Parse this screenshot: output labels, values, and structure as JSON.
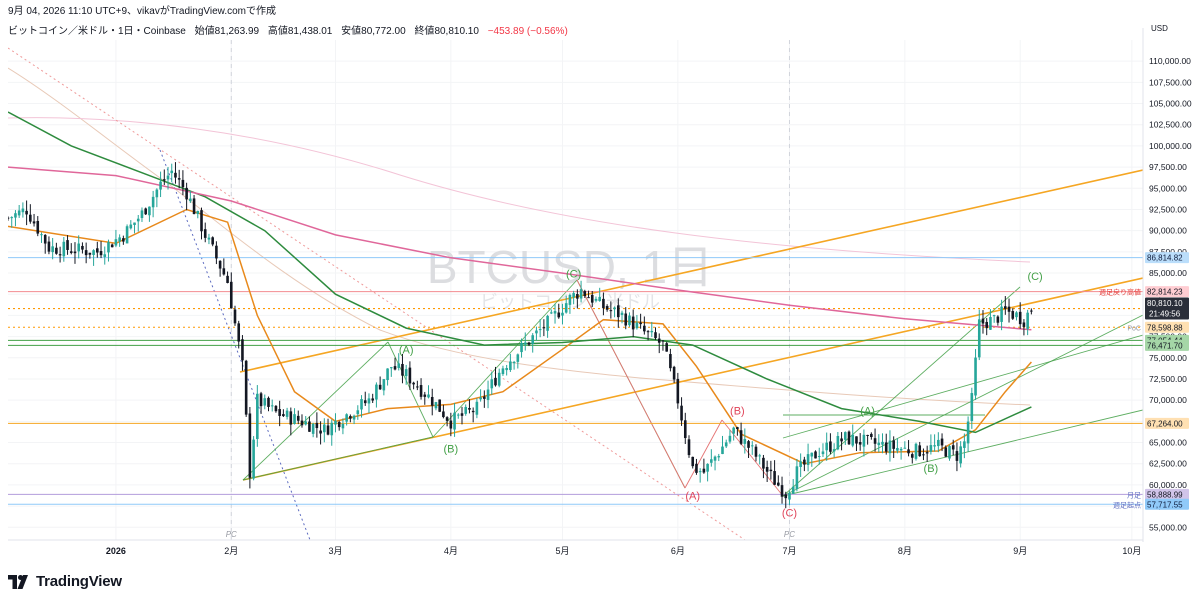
{
  "header": {
    "created_line": "9月 04, 2026 11:10 UTC+9、vikavがTradingView.comで作成"
  },
  "symbol": {
    "name": "ビットコイン／米ドル・1日・Coinbase",
    "open_label": "始値",
    "open": "81,263.99",
    "high_label": "高値",
    "high": "81,438.01",
    "low_label": "安値",
    "low": "80,772.00",
    "close_label": "終値",
    "close": "80,810.10",
    "change": "−453.89 (−0.56%)"
  },
  "watermark": {
    "main": "BTCUSD, 1日",
    "sub": "ビットコイン／米ドル"
  },
  "currency": "USD",
  "footer": {
    "logo_text": "TradingView"
  },
  "colors": {
    "up": "#26a69a",
    "down": "#131722",
    "orange": "#f5a623",
    "orange_dark": "#e8891b",
    "green_ma": "#2e8b3e",
    "pink": "#e0679a",
    "wave_green": "#43a047",
    "wave_red": "#e0455a",
    "price_line": "#ff9800",
    "blue_line": "#90caf9",
    "red_line": "#f28b91",
    "purple_line": "#b39ddb"
  },
  "chart_data": {
    "type": "candlestick",
    "symbol": "BTCUSD",
    "timeframe": "1日",
    "ylim": [
      53500,
      112500
    ],
    "y_ticks": [
      "55,000.00",
      "57,500.00",
      "60,000.00",
      "62,500.00",
      "65,000.00",
      "67,500.00",
      "70,000.00",
      "72,500.00",
      "75,000.00",
      "77,500.00",
      "80,000.00",
      "82,500.00",
      "85,000.00",
      "87,500.00",
      "90,000.00",
      "92,500.00",
      "95,000.00",
      "97,500.00",
      "100,000.00",
      "102,500.00",
      "105,000.00",
      "107,500.00",
      "110,000.00"
    ],
    "x_ticks": [
      "2026",
      "2月",
      "3月",
      "4月",
      "5月",
      "6月",
      "7月",
      "8月",
      "9月",
      "10月"
    ],
    "x_tick_dates": [
      "2026-01-01",
      "2026-02-01",
      "2026-03-01",
      "2026-04-01",
      "2026-05-01",
      "2026-06-01",
      "2026-07-01",
      "2026-08-01",
      "2026-09-01",
      "2026-10-01"
    ],
    "x_range": [
      "2025-12-03",
      "2026-10-04"
    ],
    "price_anchors": [
      [
        "2025-12-03",
        91500
      ],
      [
        "2025-12-08",
        92500
      ],
      [
        "2025-12-14",
        88000
      ],
      [
        "2025-12-20",
        87800
      ],
      [
        "2025-12-27",
        87500
      ],
      [
        "2026-01-03",
        89500
      ],
      [
        "2026-01-08",
        92000
      ],
      [
        "2026-01-13",
        95500
      ],
      [
        "2026-01-16",
        97000
      ],
      [
        "2026-01-20",
        94500
      ],
      [
        "2026-01-25",
        89500
      ],
      [
        "2026-01-31",
        84000
      ],
      [
        "2026-02-04",
        74000
      ],
      [
        "2026-02-06",
        61500
      ],
      [
        "2026-02-08",
        70000
      ],
      [
        "2026-02-13",
        68500
      ],
      [
        "2026-02-20",
        67500
      ],
      [
        "2026-02-26",
        66500
      ],
      [
        "2026-03-03",
        68000
      ],
      [
        "2026-03-10",
        70000
      ],
      [
        "2026-03-16",
        74000
      ],
      [
        "2026-03-20",
        73000
      ],
      [
        "2026-03-27",
        70000
      ],
      [
        "2026-04-01",
        67500
      ],
      [
        "2026-04-08",
        69000
      ],
      [
        "2026-04-15",
        74000
      ],
      [
        "2026-04-22",
        77000
      ],
      [
        "2026-04-28",
        79500
      ],
      [
        "2026-05-03",
        82000
      ],
      [
        "2026-05-06",
        83000
      ],
      [
        "2026-05-12",
        81000
      ],
      [
        "2026-05-17",
        80000
      ],
      [
        "2026-05-23",
        78000
      ],
      [
        "2026-05-28",
        76500
      ],
      [
        "2026-06-01",
        70000
      ],
      [
        "2026-06-05",
        62000
      ],
      [
        "2026-06-08",
        61500
      ],
      [
        "2026-06-13",
        64500
      ],
      [
        "2026-06-16",
        66500
      ],
      [
        "2026-06-21",
        64000
      ],
      [
        "2026-06-26",
        61000
      ],
      [
        "2026-06-30",
        59000
      ],
      [
        "2026-07-03",
        61500
      ],
      [
        "2026-07-09",
        64000
      ],
      [
        "2026-07-16",
        65500
      ],
      [
        "2026-07-22",
        65000
      ],
      [
        "2026-07-28",
        64500
      ],
      [
        "2026-08-04",
        64000
      ],
      [
        "2026-08-10",
        64500
      ],
      [
        "2026-08-15",
        63500
      ],
      [
        "2026-08-17",
        65000
      ],
      [
        "2026-08-19",
        70000
      ],
      [
        "2026-08-21",
        79000
      ],
      [
        "2026-08-25",
        79500
      ],
      [
        "2026-08-28",
        80500
      ],
      [
        "2026-08-31",
        80000
      ],
      [
        "2026-09-02",
        79500
      ],
      [
        "2026-09-04",
        80810
      ]
    ],
    "moving_averages": [
      {
        "color": "orange_dark",
        "points": [
          [
            "2025-12-03",
            90500
          ],
          [
            "2026-01-01",
            88500
          ],
          [
            "2026-01-20",
            92500
          ],
          [
            "2026-01-31",
            91000
          ],
          [
            "2026-02-08",
            80000
          ],
          [
            "2026-02-18",
            71000
          ],
          [
            "2026-03-01",
            67500
          ],
          [
            "2026-03-15",
            69000
          ],
          [
            "2026-04-01",
            69500
          ],
          [
            "2026-04-15",
            71000
          ],
          [
            "2026-05-01",
            76000
          ],
          [
            "2026-05-12",
            79500
          ],
          [
            "2026-05-28",
            79000
          ],
          [
            "2026-06-06",
            74000
          ],
          [
            "2026-06-18",
            66000
          ],
          [
            "2026-07-05",
            62500
          ],
          [
            "2026-07-20",
            63800
          ],
          [
            "2026-08-10",
            64000
          ],
          [
            "2026-08-20",
            66500
          ],
          [
            "2026-08-28",
            71000
          ],
          [
            "2026-09-04",
            74500
          ]
        ]
      },
      {
        "color": "green_ma",
        "points": [
          [
            "2025-12-03",
            104000
          ],
          [
            "2025-12-20",
            100000
          ],
          [
            "2026-01-10",
            96500
          ],
          [
            "2026-01-25",
            94000
          ],
          [
            "2026-02-10",
            90000
          ],
          [
            "2026-03-01",
            82500
          ],
          [
            "2026-03-20",
            78500
          ],
          [
            "2026-04-10",
            76500
          ],
          [
            "2026-05-01",
            76800
          ],
          [
            "2026-05-20",
            77500
          ],
          [
            "2026-06-05",
            76500
          ],
          [
            "2026-06-25",
            72500
          ],
          [
            "2026-07-15",
            69000
          ],
          [
            "2026-08-05",
            67500
          ],
          [
            "2026-08-20",
            66200
          ],
          [
            "2026-09-04",
            69200
          ]
        ]
      },
      {
        "color": "pink",
        "points": [
          [
            "2025-12-03",
            97500
          ],
          [
            "2026-01-01",
            96500
          ],
          [
            "2026-02-01",
            93500
          ],
          [
            "2026-03-01",
            89500
          ],
          [
            "2026-04-01",
            86800
          ],
          [
            "2026-05-01",
            85000
          ],
          [
            "2026-06-01",
            83000
          ],
          [
            "2026-07-01",
            81200
          ],
          [
            "2026-08-01",
            79600
          ],
          [
            "2026-09-04",
            78300
          ]
        ]
      }
    ],
    "horizontal_levels": [
      {
        "price": 86814.82,
        "label": "86,814.82",
        "color": "blue_line"
      },
      {
        "price": 82814.23,
        "label": "82,814.23",
        "note": "週足戻り高値",
        "color": "red_line"
      },
      {
        "price": 80810.1,
        "label": "80,810.10",
        "countdown": "21:49:56",
        "color": "price_line",
        "current": true
      },
      {
        "price": 78598.88,
        "label": "78,598.88",
        "note": "PoC",
        "color": "orange"
      },
      {
        "price": 77054.44,
        "label": "77,054.44",
        "color": "wave_green"
      },
      {
        "price": 76471.7,
        "label": "76,471.70",
        "color": "wave_green"
      },
      {
        "price": 67264.0,
        "label": "67,264.00",
        "color": "orange"
      },
      {
        "price": 58888.99,
        "label": "58,888.99",
        "note": "月足",
        "color": "purple_line"
      },
      {
        "price": 57717.55,
        "label": "57,717.55",
        "note": "週足起点",
        "color": "blue_line"
      }
    ],
    "wave_labels": [
      {
        "text": "(A)",
        "date": "2026-03-20",
        "price": 75500,
        "color": "wave_green"
      },
      {
        "text": "(B)",
        "date": "2026-04-01",
        "price": 63800,
        "color": "wave_green"
      },
      {
        "text": "(C)",
        "date": "2026-05-04",
        "price": 84500,
        "color": "wave_green"
      },
      {
        "text": "(B)",
        "date": "2026-06-17",
        "price": 68300,
        "color": "wave_red"
      },
      {
        "text": "(A)",
        "date": "2026-06-05",
        "price": 58300,
        "color": "wave_red"
      },
      {
        "text": "(C)",
        "date": "2026-07-01",
        "price": 56300,
        "color": "wave_red"
      },
      {
        "text": "(A)",
        "date": "2026-07-22",
        "price": 68300,
        "color": "wave_green"
      },
      {
        "text": "(B)",
        "date": "2026-08-08",
        "price": 61500,
        "color": "wave_green"
      },
      {
        "text": "(C)",
        "date": "2026-09-05",
        "price": 84200,
        "color": "wave_green"
      }
    ],
    "pc_labels": [
      {
        "text": "PC",
        "date": "2026-02-01"
      },
      {
        "text": "PC",
        "date": "2026-07-01"
      }
    ]
  }
}
